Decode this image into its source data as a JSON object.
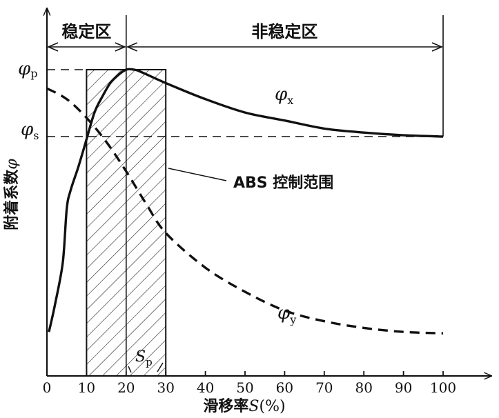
{
  "chart_data": {
    "type": "line",
    "xlabel": "滑移率",
    "xlabel_var": "S",
    "xlabel_unit": "(%)",
    "ylabel": "附着系数",
    "ylabel_var": "φ",
    "xlim": [
      0,
      100
    ],
    "x_ticks": [
      "0",
      "10",
      "20",
      "30",
      "40",
      "50",
      "60",
      "70",
      "80",
      "90",
      "100"
    ],
    "y_marks": [
      {
        "id": "phi_p",
        "label": "φ",
        "sub": "p",
        "value": 1.0
      },
      {
        "id": "phi_s",
        "label": "φ",
        "sub": "s",
        "value": 0.75
      }
    ],
    "regions": [
      {
        "id": "stable",
        "label": "稳定区",
        "x": [
          0,
          20
        ]
      },
      {
        "id": "unstable",
        "label": "非稳定区",
        "x": [
          20,
          100
        ]
      }
    ],
    "shaded_band": {
      "x": [
        10,
        30
      ],
      "label": "ABS 控制范围"
    },
    "sp_marker": {
      "label": "S",
      "sub": "p",
      "x": 20
    },
    "series": [
      {
        "name": "φ",
        "sub": "x",
        "style": "solid",
        "x": [
          0.5,
          2,
          4,
          5,
          6,
          8,
          10,
          12,
          14,
          16,
          18,
          20,
          22,
          24,
          30,
          40,
          50,
          60,
          70,
          80,
          90,
          100
        ],
        "y": [
          0.02,
          0.12,
          0.28,
          0.48,
          0.55,
          0.64,
          0.74,
          0.84,
          0.9,
          0.95,
          0.98,
          1.0,
          1.0,
          0.99,
          0.95,
          0.89,
          0.84,
          0.81,
          0.78,
          0.765,
          0.755,
          0.75
        ]
      },
      {
        "name": "φ",
        "sub": "y",
        "style": "dashed",
        "x": [
          0,
          5,
          10,
          15,
          20,
          25,
          30,
          40,
          50,
          60,
          70,
          80,
          90,
          100
        ],
        "y": [
          0.93,
          0.89,
          0.82,
          0.73,
          0.62,
          0.5,
          0.39,
          0.26,
          0.17,
          0.1,
          0.06,
          0.035,
          0.02,
          0.015
        ]
      }
    ]
  }
}
